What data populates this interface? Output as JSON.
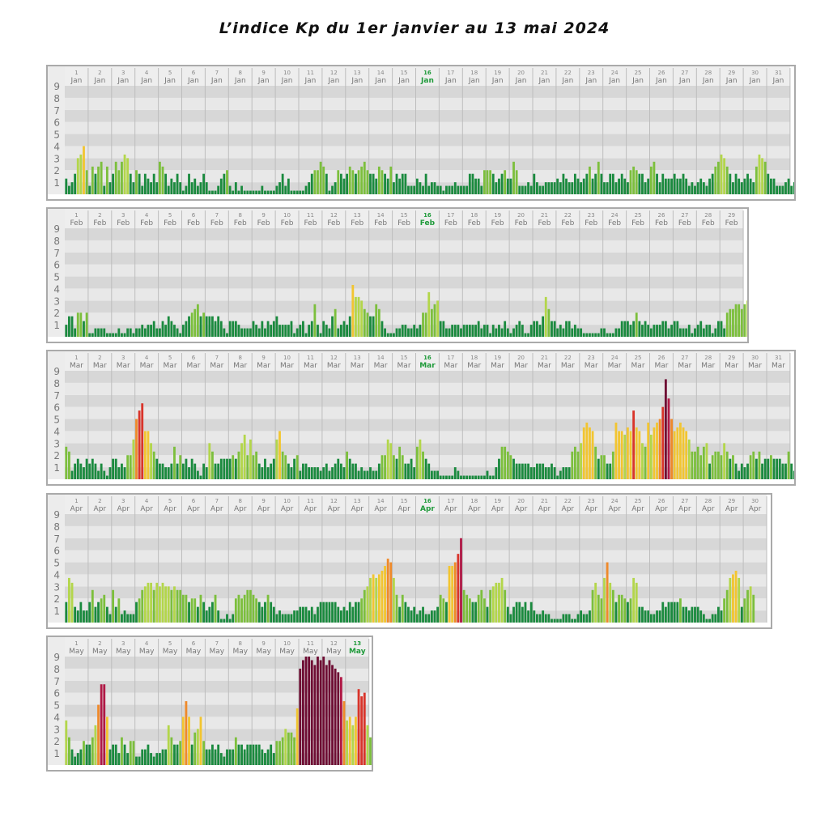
{
  "page": {
    "title": "L’indice Kp du 1er janvier au 13 mai 2024"
  },
  "chart_data": [
    {
      "type": "bar",
      "month": "Jan",
      "days": 31,
      "highlight_day": 16,
      "ylim": [
        0,
        9
      ],
      "y_ticks": [
        "1",
        "2",
        "3",
        "4",
        "5",
        "6",
        "7",
        "8",
        "9"
      ],
      "values": [
        1.3,
        0.7,
        1.0,
        1.7,
        3.0,
        3.3,
        4.0,
        2.0,
        0.7,
        2.3,
        1.7,
        2.3,
        2.7,
        0.7,
        2.3,
        1.0,
        1.7,
        2.7,
        2.0,
        2.7,
        3.3,
        3.0,
        1.7,
        1.0,
        2.0,
        1.7,
        0.7,
        1.7,
        1.3,
        1.0,
        1.7,
        1.0,
        2.7,
        2.3,
        1.7,
        0.7,
        1.3,
        1.0,
        1.7,
        1.0,
        0.3,
        0.7,
        1.7,
        1.0,
        1.3,
        0.7,
        1.0,
        1.7,
        1.0,
        0.3,
        0.3,
        0.3,
        0.7,
        1.3,
        1.7,
        2.0,
        0.7,
        0.3,
        1.0,
        0.3,
        0.7,
        0.3,
        0.3,
        0.3,
        0.3,
        0.3,
        0.3,
        0.7,
        0.3,
        0.3,
        0.3,
        0.3,
        0.7,
        1.0,
        1.7,
        0.7,
        1.3,
        0.3,
        0.3,
        0.3,
        0.3,
        0.3,
        0.7,
        1.0,
        1.7,
        2.0,
        2.0,
        2.7,
        2.3,
        1.7,
        0.3,
        0.7,
        1.0,
        2.0,
        1.7,
        1.3,
        1.7,
        2.3,
        2.0,
        1.7,
        2.0,
        2.3,
        2.7,
        2.0,
        1.7,
        1.7,
        1.3,
        2.3,
        2.0,
        1.7,
        1.3,
        2.3,
        1.0,
        1.7,
        1.3,
        1.7,
        1.7,
        0.7,
        0.7,
        0.7,
        1.3,
        1.0,
        0.7,
        1.7,
        0.7,
        1.0,
        1.0,
        0.7,
        0.7,
        0.3,
        0.7,
        0.7,
        0.7,
        1.0,
        0.7,
        0.7,
        0.7,
        0.7,
        1.7,
        1.7,
        1.3,
        1.3,
        0.7,
        2.0,
        2.0,
        2.0,
        1.7,
        1.0,
        1.3,
        1.7,
        2.0,
        1.3,
        1.3,
        2.7,
        2.0,
        0.7,
        0.7,
        0.7,
        1.0,
        0.7,
        1.7,
        1.0,
        0.7,
        0.7,
        1.0,
        1.0,
        1.0,
        1.0,
        1.3,
        1.0,
        1.7,
        1.3,
        1.0,
        1.0,
        1.7,
        1.3,
        1.0,
        1.3,
        1.7,
        2.3,
        1.3,
        1.7,
        2.7,
        1.7,
        1.0,
        1.0,
        1.7,
        1.7,
        1.0,
        1.3,
        1.7,
        1.3,
        1.0,
        2.0,
        2.3,
        2.0,
        1.7,
        1.7,
        1.0,
        1.3,
        2.3,
        2.7,
        1.7,
        1.0,
        1.7,
        1.3,
        1.3,
        1.3,
        1.7,
        1.3,
        1.3,
        1.7,
        1.3,
        0.7,
        1.0,
        0.7,
        1.0,
        1.3,
        1.0,
        0.7,
        1.3,
        1.7,
        2.3,
        2.7,
        3.3,
        3.0,
        2.3,
        1.7,
        1.0,
        1.7,
        1.3,
        1.0,
        1.3,
        1.7,
        1.3,
        1.0,
        2.3,
        3.3,
        3.0,
        2.7,
        1.7,
        1.3,
        1.3,
        0.7,
        0.7,
        0.7,
        1.0,
        1.3,
        0.7,
        1.0,
        1.0,
        1.3,
        2.0,
        1.7,
        1.3,
        0.7,
        0.7,
        1.7,
        1.3,
        2.3,
        1.7,
        1.3,
        1.7,
        1.3,
        1.0,
        1.0,
        1.0,
        0.7,
        0.7,
        0.7,
        0.7,
        1.0,
        1.0,
        1.3,
        1.0,
        1.7,
        1.3,
        1.7,
        1.3,
        2.7,
        3.0,
        2.7,
        2.0,
        1.7,
        1.0,
        1.3,
        2.3,
        2.0,
        2.0,
        2.3,
        2.3,
        2.0,
        1.7,
        2.3,
        1.7,
        1.3,
        1.7,
        2.3,
        2.0,
        1.7,
        2.3,
        1.3,
        1.3,
        1.3,
        1.3,
        1.3,
        1.0,
        1.7,
        1.7,
        2.0,
        2.0,
        1.3,
        1.0
      ]
    },
    {
      "type": "bar",
      "month": "Feb",
      "days": 29,
      "highlight_day": 16,
      "ylim": [
        0,
        9
      ],
      "y_ticks": [
        "1",
        "2",
        "3",
        "4",
        "5",
        "6",
        "7",
        "8",
        "9"
      ],
      "values": [
        1.0,
        1.7,
        1.7,
        0.7,
        2.0,
        2.0,
        1.3,
        2.0,
        0.3,
        0.3,
        0.7,
        0.7,
        0.7,
        0.7,
        0.3,
        0.3,
        0.3,
        0.3,
        0.7,
        0.3,
        0.3,
        0.7,
        0.7,
        0.3,
        0.7,
        0.7,
        1.0,
        0.7,
        1.0,
        1.0,
        1.3,
        0.7,
        0.7,
        1.3,
        1.0,
        1.7,
        1.3,
        1.0,
        0.7,
        0.3,
        1.0,
        1.3,
        1.7,
        2.0,
        2.3,
        2.7,
        1.7,
        2.0,
        1.7,
        1.7,
        1.7,
        1.3,
        1.7,
        1.3,
        0.7,
        0.3,
        1.3,
        1.3,
        1.3,
        1.0,
        0.7,
        0.7,
        0.7,
        0.7,
        1.3,
        1.0,
        0.7,
        1.3,
        0.7,
        1.3,
        1.0,
        1.3,
        1.7,
        1.0,
        1.0,
        1.0,
        1.0,
        1.3,
        0.3,
        0.7,
        1.0,
        1.3,
        0.3,
        1.0,
        1.3,
        2.7,
        1.0,
        0.3,
        1.3,
        1.0,
        0.7,
        1.7,
        2.3,
        0.7,
        1.0,
        1.3,
        1.0,
        1.7,
        4.3,
        3.3,
        3.3,
        3.0,
        2.3,
        2.0,
        1.7,
        1.7,
        2.7,
        2.3,
        1.3,
        0.7,
        0.3,
        0.3,
        0.3,
        0.7,
        0.7,
        1.0,
        1.0,
        0.7,
        0.7,
        1.0,
        0.7,
        1.0,
        2.0,
        2.0,
        3.7,
        2.3,
        2.7,
        3.0,
        1.3,
        1.3,
        0.7,
        0.7,
        1.0,
        1.0,
        1.0,
        0.7,
        1.0,
        1.0,
        1.0,
        1.0,
        1.0,
        1.3,
        0.7,
        1.0,
        1.0,
        0.3,
        1.0,
        0.7,
        1.0,
        0.7,
        1.3,
        0.7,
        0.3,
        0.7,
        1.0,
        1.3,
        1.0,
        0.3,
        0.3,
        1.0,
        1.3,
        1.3,
        1.0,
        1.7,
        3.3,
        2.3,
        1.3,
        1.3,
        0.7,
        1.0,
        0.7,
        1.3,
        1.3,
        0.7,
        1.0,
        0.7,
        0.7,
        0.3,
        0.3,
        0.3,
        0.3,
        0.3,
        0.3,
        0.7,
        0.7,
        0.3,
        0.3,
        0.3,
        0.7,
        0.7,
        1.3,
        1.3,
        1.3,
        1.0,
        1.3,
        2.0,
        1.3,
        1.0,
        1.3,
        1.0,
        0.7,
        1.0,
        1.0,
        1.0,
        1.3,
        1.3,
        0.7,
        1.0,
        1.3,
        1.3,
        0.7,
        0.7,
        0.7,
        1.0,
        0.3,
        0.7,
        1.0,
        1.3,
        0.7,
        1.0,
        1.0,
        0.3,
        0.7,
        1.3,
        1.3,
        0.7,
        2.0,
        2.3,
        2.3,
        2.7,
        2.7,
        2.3,
        2.7,
        3.0,
        2.7,
        2.3,
        3.0,
        3.0,
        2.7,
        2.3,
        2.7,
        1.7,
        2.0,
        2.3,
        2.0,
        1.3,
        2.3,
        4.3,
        3.7,
        1.3,
        0.7,
        1.0,
        1.0,
        3.0,
        1.3,
        1.3,
        1.7,
        1.0,
        1.3,
        2.0,
        1.3,
        0.7,
        0.7,
        1.0,
        1.0,
        0.7,
        0.7,
        1.0,
        1.3,
        1.7,
        1.3,
        0.7,
        0.7,
        1.0
      ]
    },
    {
      "type": "bar",
      "month": "Mar",
      "days": 31,
      "highlight_day": 16,
      "ylim": [
        0,
        9
      ],
      "y_ticks": [
        "1",
        "2",
        "3",
        "4",
        "5",
        "6",
        "7",
        "8",
        "9"
      ],
      "values": [
        2.7,
        2.3,
        0.7,
        1.3,
        1.7,
        1.3,
        1.0,
        1.7,
        1.3,
        1.7,
        1.3,
        0.7,
        1.3,
        0.7,
        0.3,
        1.0,
        1.7,
        1.7,
        1.0,
        1.3,
        1.0,
        2.0,
        2.0,
        3.3,
        5.0,
        5.7,
        6.3,
        4.0,
        4.0,
        3.0,
        2.3,
        1.7,
        1.3,
        1.3,
        1.0,
        1.0,
        1.3,
        2.7,
        1.3,
        2.0,
        1.3,
        1.7,
        1.0,
        1.7,
        1.3,
        0.7,
        0.3,
        1.3,
        1.0,
        3.0,
        2.3,
        1.3,
        1.3,
        1.7,
        1.7,
        1.7,
        1.7,
        2.0,
        1.7,
        2.3,
        3.0,
        3.7,
        2.0,
        3.3,
        2.0,
        2.3,
        1.3,
        1.0,
        1.7,
        1.0,
        1.3,
        1.7,
        3.3,
        4.0,
        2.3,
        2.0,
        1.3,
        1.0,
        1.7,
        2.0,
        0.7,
        1.3,
        1.3,
        1.0,
        1.0,
        1.0,
        1.0,
        0.7,
        1.0,
        1.3,
        0.7,
        1.0,
        1.3,
        1.7,
        1.3,
        1.0,
        2.3,
        1.7,
        1.3,
        1.3,
        0.7,
        1.0,
        0.7,
        0.7,
        1.0,
        0.7,
        0.7,
        1.3,
        2.0,
        2.0,
        3.3,
        3.0,
        2.0,
        1.7,
        2.7,
        2.0,
        1.3,
        1.3,
        1.7,
        1.0,
        2.7,
        3.3,
        2.3,
        1.7,
        1.3,
        0.7,
        0.7,
        0.7,
        0.3,
        0.3,
        0.3,
        0.3,
        0.3,
        1.0,
        0.7,
        0.3,
        0.3,
        0.3,
        0.3,
        0.3,
        0.3,
        0.3,
        0.3,
        0.3,
        0.7,
        0.3,
        0.3,
        1.0,
        1.7,
        2.7,
        2.7,
        2.3,
        2.0,
        1.7,
        1.3,
        1.3,
        1.3,
        1.3,
        1.3,
        1.0,
        1.0,
        1.3,
        1.3,
        1.3,
        1.0,
        1.0,
        1.3,
        1.0,
        0.3,
        0.7,
        1.0,
        1.0,
        1.0,
        2.3,
        2.7,
        2.3,
        3.0,
        4.3,
        4.7,
        4.3,
        4.0,
        2.7,
        1.7,
        2.0,
        2.0,
        1.3,
        1.3,
        2.3,
        4.7,
        4.0,
        4.0,
        3.7,
        4.3,
        4.0,
        5.7,
        4.3,
        4.0,
        3.0,
        2.7,
        4.7,
        3.7,
        4.3,
        4.7,
        5.0,
        6.0,
        8.3,
        6.7,
        5.0,
        4.0,
        4.3,
        4.7,
        4.3,
        4.0,
        3.3,
        2.3,
        2.3,
        2.7,
        2.0,
        2.7,
        3.0,
        1.3,
        2.0,
        2.3,
        2.3,
        2.0,
        3.0,
        2.3,
        1.7,
        2.0,
        1.3,
        0.7,
        1.3,
        1.0,
        1.3,
        2.0,
        2.3,
        1.7,
        2.3,
        1.3,
        1.7,
        1.7,
        2.0,
        1.7,
        1.7,
        1.7,
        1.3,
        1.3,
        2.3,
        1.3,
        0.7,
        1.0,
        1.3,
        0.7,
        1.0,
        1.0,
        0.7,
        0.7,
        1.0,
        1.7,
        2.0,
        1.3,
        2.0,
        3.7,
        1.3,
        1.3,
        1.3,
        1.0,
        1.3,
        2.3
      ]
    },
    {
      "type": "bar",
      "month": "Apr",
      "days": 30,
      "highlight_day": 16,
      "ylim": [
        0,
        9
      ],
      "y_ticks": [
        "1",
        "2",
        "3",
        "4",
        "5",
        "6",
        "7",
        "8",
        "9"
      ],
      "values": [
        1.7,
        3.7,
        3.3,
        1.3,
        1.0,
        1.7,
        1.0,
        1.0,
        1.7,
        2.7,
        1.3,
        1.7,
        2.0,
        2.3,
        1.3,
        0.7,
        2.7,
        1.3,
        2.0,
        0.7,
        1.0,
        0.7,
        0.7,
        0.7,
        1.7,
        2.0,
        2.7,
        3.0,
        3.3,
        3.3,
        2.7,
        3.3,
        3.0,
        3.3,
        3.0,
        3.0,
        2.7,
        3.0,
        2.7,
        2.7,
        2.3,
        2.3,
        1.7,
        2.0,
        2.0,
        1.3,
        2.3,
        1.7,
        1.0,
        1.3,
        1.7,
        2.3,
        1.0,
        0.3,
        0.3,
        0.7,
        0.3,
        0.7,
        2.0,
        2.3,
        2.0,
        2.3,
        2.7,
        2.7,
        2.3,
        2.0,
        1.7,
        1.3,
        1.7,
        2.3,
        1.7,
        1.3,
        0.7,
        1.0,
        0.7,
        0.7,
        0.7,
        0.7,
        1.0,
        1.0,
        1.3,
        1.3,
        1.3,
        1.0,
        1.3,
        0.7,
        1.3,
        1.7,
        1.7,
        1.7,
        1.7,
        1.7,
        1.7,
        1.3,
        1.0,
        1.3,
        1.0,
        1.7,
        1.3,
        1.7,
        1.7,
        2.0,
        2.7,
        3.0,
        3.7,
        4.0,
        3.7,
        4.0,
        4.3,
        4.7,
        5.3,
        5.0,
        3.7,
        2.3,
        1.3,
        2.3,
        1.7,
        1.3,
        1.0,
        1.3,
        0.7,
        1.0,
        1.3,
        0.7,
        0.7,
        1.0,
        1.0,
        1.3,
        2.3,
        2.0,
        1.7,
        4.7,
        4.7,
        5.0,
        5.7,
        7.0,
        2.7,
        2.3,
        2.0,
        1.7,
        1.7,
        2.3,
        2.7,
        2.0,
        1.3,
        2.7,
        3.0,
        3.3,
        3.3,
        3.7,
        2.7,
        1.3,
        0.7,
        1.3,
        1.7,
        1.7,
        1.3,
        1.7,
        1.0,
        1.7,
        1.0,
        0.7,
        0.7,
        1.0,
        0.7,
        0.7,
        0.3,
        0.3,
        0.3,
        0.3,
        0.7,
        0.7,
        0.7,
        0.3,
        0.3,
        0.7,
        1.0,
        0.7,
        0.7,
        1.0,
        2.7,
        3.3,
        2.3,
        2.0,
        3.7,
        5.0,
        3.3,
        2.7,
        1.7,
        2.3,
        2.3,
        2.0,
        1.7,
        2.0,
        3.7,
        3.3,
        1.3,
        1.3,
        1.0,
        1.0,
        0.7,
        0.7,
        1.0,
        1.0,
        1.7,
        1.3,
        1.7,
        1.7,
        1.7,
        1.7,
        2.0,
        1.3,
        1.3,
        1.0,
        1.3,
        1.3,
        1.3,
        1.0,
        0.7,
        0.3,
        0.3,
        0.7,
        0.7,
        1.3,
        1.0,
        2.0,
        2.7,
        3.7,
        4.0,
        4.3,
        3.7,
        1.3,
        2.0,
        2.7,
        3.0,
        2.3
      ]
    },
    {
      "type": "bar",
      "month": "May",
      "days": 13,
      "highlight_day": 13,
      "ylim": [
        0,
        9
      ],
      "y_ticks": [
        "1",
        "2",
        "3",
        "4",
        "5",
        "6",
        "7",
        "8",
        "9"
      ],
      "values": [
        3.7,
        2.3,
        1.3,
        0.7,
        1.0,
        1.3,
        2.0,
        1.7,
        1.7,
        2.3,
        3.3,
        5.0,
        6.7,
        6.7,
        4.0,
        1.3,
        1.7,
        1.7,
        1.0,
        2.3,
        1.7,
        1.0,
        2.0,
        2.0,
        0.7,
        0.7,
        1.3,
        1.3,
        1.7,
        1.0,
        0.7,
        1.0,
        1.0,
        1.3,
        1.3,
        3.3,
        2.3,
        1.7,
        1.7,
        2.0,
        4.0,
        5.3,
        4.0,
        1.7,
        2.7,
        3.0,
        4.0,
        2.0,
        1.3,
        1.3,
        1.7,
        1.3,
        1.7,
        1.0,
        0.7,
        1.3,
        1.3,
        1.3,
        2.3,
        1.7,
        1.7,
        1.3,
        1.7,
        1.7,
        1.7,
        1.7,
        1.7,
        1.3,
        1.0,
        1.3,
        1.7,
        1.0,
        2.0,
        2.0,
        2.3,
        3.0,
        2.7,
        2.7,
        2.3,
        4.7,
        8.0,
        8.7,
        9.0,
        9.0,
        8.7,
        8.3,
        9.0,
        8.7,
        9.0,
        8.3,
        8.7,
        8.3,
        8.0,
        7.7,
        7.3,
        5.3,
        3.7,
        4.0,
        3.3,
        4.0,
        6.3,
        5.7,
        6.0,
        3.3,
        2.3,
        2.7
      ]
    }
  ]
}
